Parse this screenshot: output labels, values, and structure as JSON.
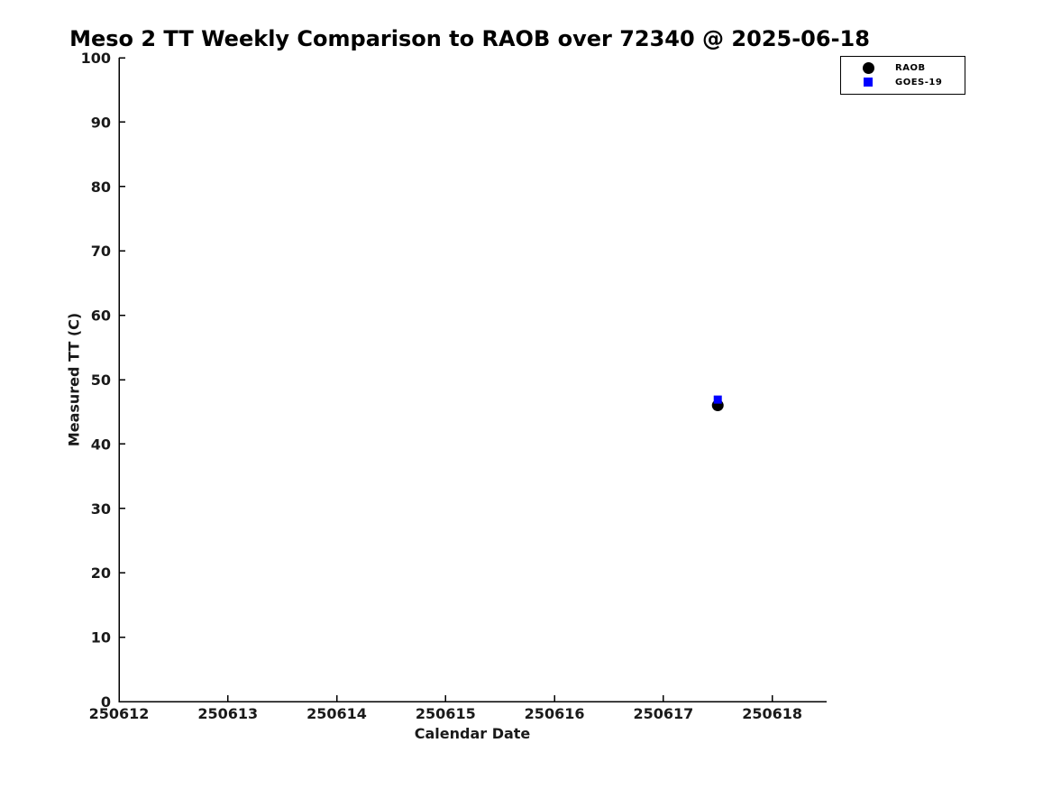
{
  "chart_data": {
    "type": "scatter",
    "title": "Meso 2 TT Weekly Comparison to RAOB over 72340 @ 2025-06-18",
    "xlabel": "Calendar Date",
    "ylabel": "Measured TT (C)",
    "xlim": [
      250612,
      250618.5
    ],
    "ylim": [
      0,
      100
    ],
    "xticks": [
      250612,
      250613,
      250614,
      250615,
      250616,
      250617,
      250618
    ],
    "yticks": [
      0,
      10,
      20,
      30,
      40,
      50,
      60,
      70,
      80,
      90,
      100
    ],
    "grid": false,
    "legend_position": "upper right, outside plot area",
    "series": [
      {
        "name": "RAOB",
        "marker": "circle",
        "color": "#000000",
        "points": [
          {
            "x": 250617.5,
            "y": 46.0
          }
        ]
      },
      {
        "name": "GOES-19",
        "marker": "square",
        "color": "#0000ff",
        "points": [
          {
            "x": 250617.5,
            "y": 46.9
          }
        ]
      }
    ]
  },
  "colors": {
    "background": "#ffffff",
    "axis": "#000000",
    "text": "#000000",
    "raob": "#000000",
    "goes19": "#0000ff"
  }
}
